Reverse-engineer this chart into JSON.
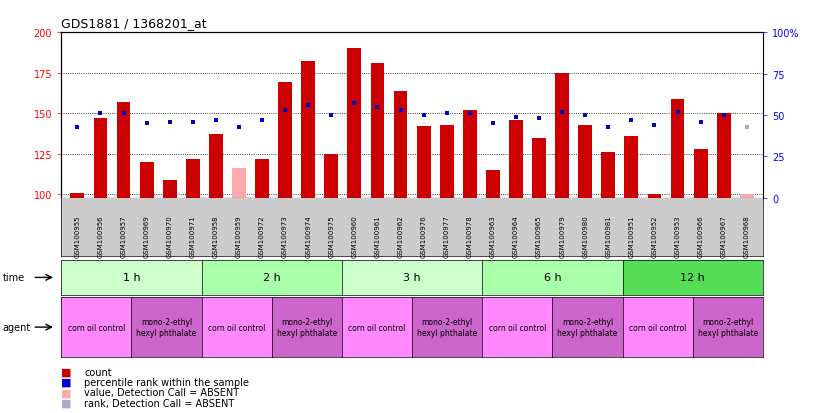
{
  "title": "GDS1881 / 1368201_at",
  "samples": [
    "GSM100955",
    "GSM100956",
    "GSM100957",
    "GSM100969",
    "GSM100970",
    "GSM100971",
    "GSM100958",
    "GSM100959",
    "GSM100972",
    "GSM100973",
    "GSM100974",
    "GSM100975",
    "GSM100960",
    "GSM100961",
    "GSM100962",
    "GSM100976",
    "GSM100977",
    "GSM100978",
    "GSM100963",
    "GSM100964",
    "GSM100965",
    "GSM100979",
    "GSM100980",
    "GSM100981",
    "GSM100951",
    "GSM100952",
    "GSM100953",
    "GSM100966",
    "GSM100967",
    "GSM100968"
  ],
  "count_values": [
    101,
    147,
    157,
    120,
    109,
    122,
    137,
    116,
    122,
    169,
    182,
    125,
    190,
    181,
    164,
    142,
    143,
    152,
    115,
    146,
    135,
    175,
    143,
    126,
    136,
    100,
    159,
    128,
    150,
    100
  ],
  "percentile_values": [
    43,
    51,
    51,
    45,
    46,
    46,
    47,
    43,
    47,
    53,
    56,
    50,
    57,
    55,
    53,
    50,
    51,
    51,
    45,
    49,
    48,
    52,
    50,
    43,
    47,
    44,
    52,
    46,
    50,
    43
  ],
  "absent_count": [
    false,
    false,
    false,
    false,
    false,
    false,
    false,
    true,
    false,
    false,
    false,
    false,
    false,
    false,
    false,
    false,
    false,
    false,
    false,
    false,
    false,
    false,
    false,
    false,
    false,
    false,
    false,
    false,
    false,
    true
  ],
  "absent_rank": [
    false,
    false,
    false,
    false,
    false,
    false,
    false,
    false,
    false,
    false,
    false,
    false,
    false,
    false,
    false,
    false,
    false,
    false,
    false,
    false,
    false,
    false,
    false,
    false,
    false,
    false,
    false,
    false,
    false,
    true
  ],
  "time_groups": [
    {
      "label": "1 h",
      "start": 0,
      "end": 6,
      "color": "#ccffcc"
    },
    {
      "label": "2 h",
      "start": 6,
      "end": 12,
      "color": "#aaffaa"
    },
    {
      "label": "3 h",
      "start": 12,
      "end": 18,
      "color": "#ccffcc"
    },
    {
      "label": "6 h",
      "start": 18,
      "end": 24,
      "color": "#aaffaa"
    },
    {
      "label": "12 h",
      "start": 24,
      "end": 30,
      "color": "#55dd55"
    }
  ],
  "agent_groups": [
    {
      "label": "corn oil control",
      "start": 0,
      "end": 3,
      "color": "#ff88ff"
    },
    {
      "label": "mono-2-ethyl\nhexyl phthalate",
      "start": 3,
      "end": 6,
      "color": "#cc66cc"
    },
    {
      "label": "corn oil control",
      "start": 6,
      "end": 9,
      "color": "#ff88ff"
    },
    {
      "label": "mono-2-ethyl\nhexyl phthalate",
      "start": 9,
      "end": 12,
      "color": "#cc66cc"
    },
    {
      "label": "corn oil control",
      "start": 12,
      "end": 15,
      "color": "#ff88ff"
    },
    {
      "label": "mono-2-ethyl\nhexyl phthalate",
      "start": 15,
      "end": 18,
      "color": "#cc66cc"
    },
    {
      "label": "corn oil control",
      "start": 18,
      "end": 21,
      "color": "#ff88ff"
    },
    {
      "label": "mono-2-ethyl\nhexyl phthalate",
      "start": 21,
      "end": 24,
      "color": "#cc66cc"
    },
    {
      "label": "corn oil control",
      "start": 24,
      "end": 27,
      "color": "#ff88ff"
    },
    {
      "label": "mono-2-ethyl\nhexyl phthalate",
      "start": 27,
      "end": 30,
      "color": "#cc66cc"
    }
  ],
  "ylim_left": [
    98,
    200
  ],
  "ylim_right": [
    0,
    100
  ],
  "yticks_left": [
    100,
    125,
    150,
    175,
    200
  ],
  "yticks_right": [
    0,
    25,
    50,
    75,
    100
  ],
  "bar_color": "#cc0000",
  "bar_absent_color": "#ffaaaa",
  "dot_color": "#0000cc",
  "dot_absent_color": "#aaaacc",
  "bar_width": 0.6,
  "xaxis_bg": "#cccccc"
}
